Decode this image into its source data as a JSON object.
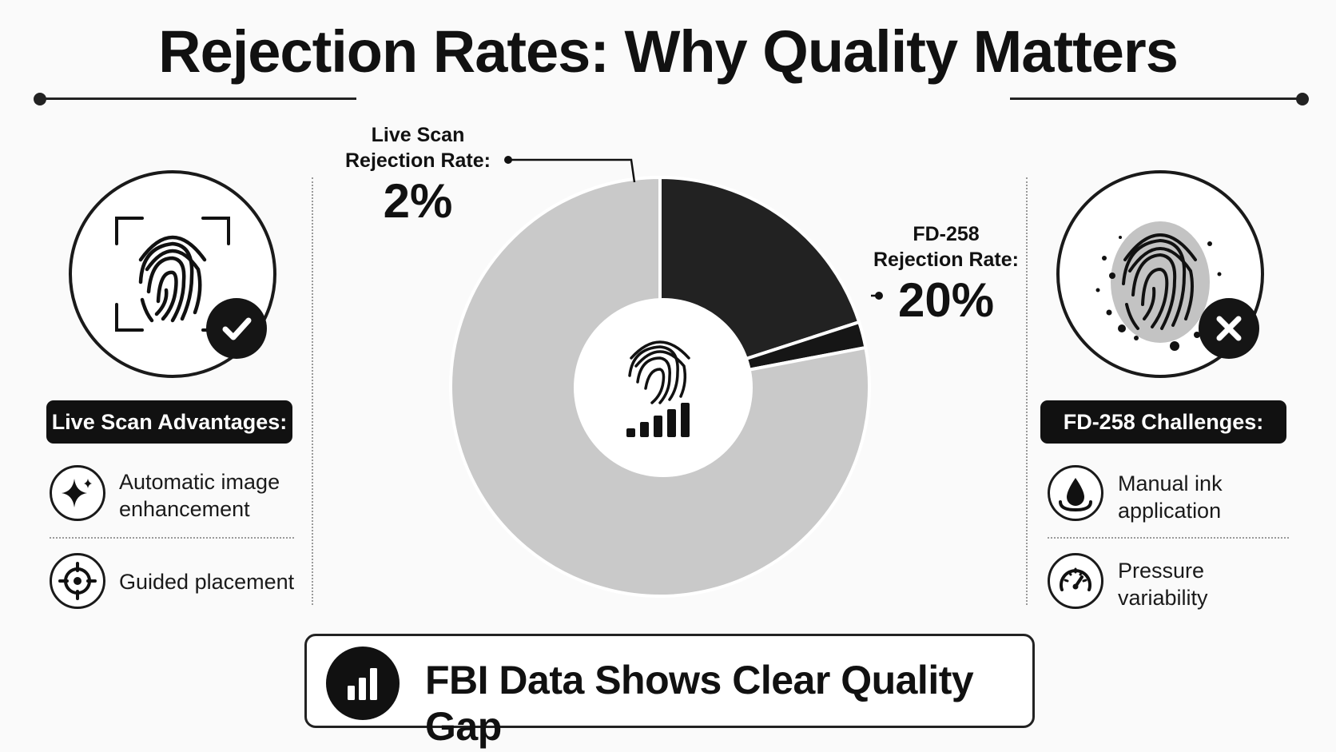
{
  "title": "Rejection Rates: Why Quality Matters",
  "chart_data": {
    "type": "pie",
    "style": "donut",
    "slices": [
      {
        "label": "FD-258 Rejection Rate:",
        "value_text": "20%",
        "value": 20,
        "color": "#222222"
      },
      {
        "label": "Live Scan Rejection Rate:",
        "value_text": "2%",
        "value": 2,
        "color": "#161616"
      },
      {
        "label": "",
        "value": 78,
        "color": "#c9c9c9"
      }
    ],
    "legend": "none",
    "center_icon": "fingerprint-chart-icon"
  },
  "callouts": {
    "live_scan": {
      "label_line1": "Live Scan",
      "label_line2": "Rejection Rate:",
      "value": "2%"
    },
    "fd258": {
      "label_line1": "FD-258",
      "label_line2": "Rejection Rate:",
      "value": "20%"
    }
  },
  "left_panel": {
    "icon": "fingerprint-scan-icon",
    "status_icon": "checkmark-icon",
    "heading": "Live Scan Advantages:",
    "items": [
      {
        "icon": "sparkle-icon",
        "line1": "Automatic image",
        "line2": "enhancement"
      },
      {
        "icon": "crosshair-icon",
        "line1": "Guided placement",
        "line2": ""
      }
    ]
  },
  "right_panel": {
    "icon": "smudged-fingerprint-icon",
    "status_icon": "x-icon",
    "heading": "FD-258 Challenges:",
    "items": [
      {
        "icon": "ink-drop-icon",
        "line1": "Manual ink",
        "line2": "application"
      },
      {
        "icon": "gauge-icon",
        "line1": "Pressure",
        "line2": "variability"
      }
    ]
  },
  "summary": {
    "icon": "bar-chart-icon",
    "text": "FBI Data Shows Clear Quality Gap"
  }
}
